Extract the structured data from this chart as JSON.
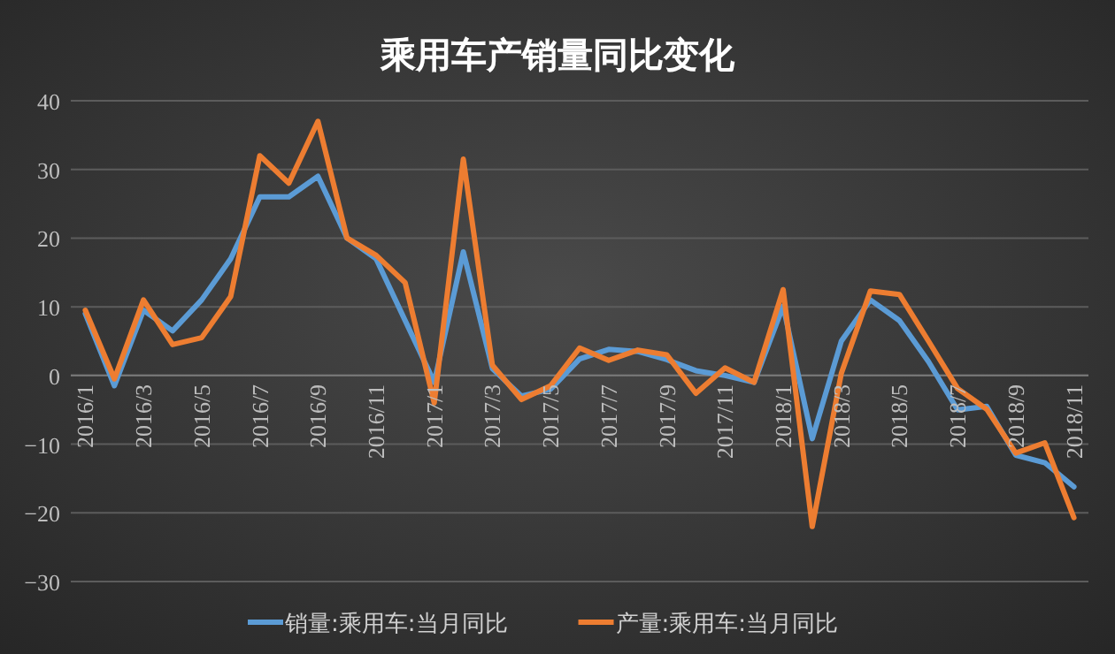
{
  "chart_data": {
    "type": "line",
    "title": "乘用车产销量同比变化",
    "categories": [
      "2016/1",
      null,
      "2016/3",
      null,
      "2016/5",
      null,
      "2016/7",
      null,
      "2016/9",
      null,
      "2016/11",
      null,
      "2017/1",
      null,
      "2017/3",
      null,
      "2017/5",
      null,
      "2017/7",
      null,
      "2017/9",
      null,
      "2017/11",
      null,
      "2018/1",
      null,
      "2018/3",
      null,
      "2018/5",
      null,
      "2018/7",
      null,
      "2018/9",
      null,
      "2018/11"
    ],
    "series": [
      {
        "name": "销量:乘用车:当月同比",
        "color": "#5b9bd5",
        "values": [
          9,
          -1.5,
          9.5,
          6.5,
          11,
          17,
          26,
          26,
          29,
          20,
          17,
          8,
          -1,
          18,
          1,
          -3,
          -2,
          2.4,
          3.8,
          3.5,
          2.3,
          0.7,
          0,
          -1,
          10.1,
          -9.2,
          5,
          11,
          8,
          2,
          -5,
          -4.5,
          -11.6,
          -12.7,
          -16.2
        ]
      },
      {
        "name": "产量:乘用车:当月同比",
        "color": "#ed7d31",
        "values": [
          9.5,
          -0.5,
          11,
          4.5,
          5.5,
          11.5,
          32,
          28,
          37,
          20,
          17.5,
          13.5,
          -4,
          31.5,
          1.5,
          -3.5,
          -1.5,
          4,
          2.2,
          3.7,
          3,
          -2.6,
          1.1,
          -1,
          12.5,
          -22,
          0.3,
          12.3,
          11.8,
          5,
          -1.9,
          -4.9,
          -11.3,
          -9.8,
          -20.7
        ]
      }
    ],
    "ylim": [
      -30,
      40
    ],
    "yticks": [
      -30,
      -20,
      -10,
      0,
      10,
      20,
      30,
      40
    ],
    "grid": "y",
    "legend": "bottom"
  }
}
